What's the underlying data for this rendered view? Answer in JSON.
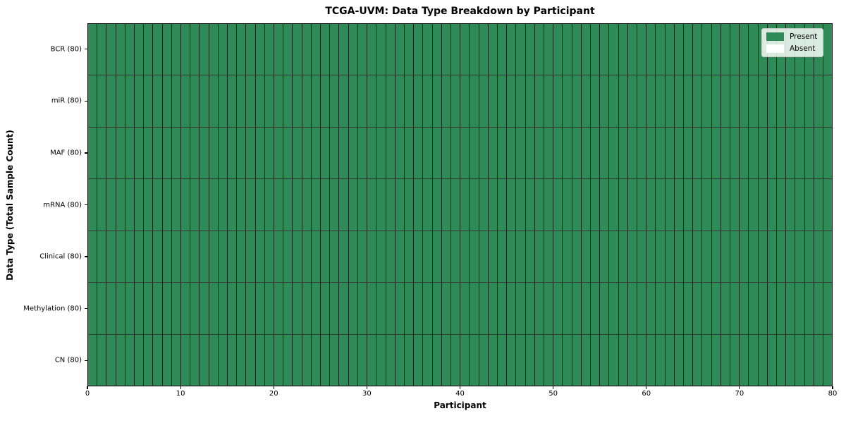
{
  "figure": {
    "title": "TCGA-UVM: Data Type Breakdown by Participant"
  },
  "chart_data": {
    "type": "heatmap",
    "title": "TCGA-UVM: Data Type Breakdown by Participant",
    "xlabel": "Participant",
    "ylabel": "Data Type (Total Sample Count)",
    "xlim": [
      0,
      80
    ],
    "x_ticks": [
      0,
      10,
      20,
      30,
      40,
      50,
      60,
      70,
      80
    ],
    "n_participants": 80,
    "rows": [
      {
        "label": "BCR (80)",
        "data_type": "BCR",
        "total_samples": 80,
        "present": 80,
        "absent": 0
      },
      {
        "label": "miR (80)",
        "data_type": "miR",
        "total_samples": 80,
        "present": 80,
        "absent": 0
      },
      {
        "label": "MAF (80)",
        "data_type": "MAF",
        "total_samples": 80,
        "present": 80,
        "absent": 0
      },
      {
        "label": "mRNA (80)",
        "data_type": "mRNA",
        "total_samples": 80,
        "present": 80,
        "absent": 0
      },
      {
        "label": "Clinical (80)",
        "data_type": "Clinical",
        "total_samples": 80,
        "present": 80,
        "absent": 0
      },
      {
        "label": "Methylation (80)",
        "data_type": "Methylation",
        "total_samples": 80,
        "present": 80,
        "absent": 0
      },
      {
        "label": "CN (80)",
        "data_type": "CN",
        "total_samples": 80,
        "present": 80,
        "absent": 0
      }
    ],
    "legend": [
      {
        "label": "Present",
        "color": "#2e8b57"
      },
      {
        "label": "Absent",
        "color": "#ffffff"
      }
    ],
    "legend_position": "upper right",
    "colors": {
      "present": "#2e8b57",
      "absent": "#ffffff",
      "cell_border": "#1f1f1f",
      "axis": "#000000",
      "background": "#ffffff"
    },
    "grid": "cell-borders"
  }
}
